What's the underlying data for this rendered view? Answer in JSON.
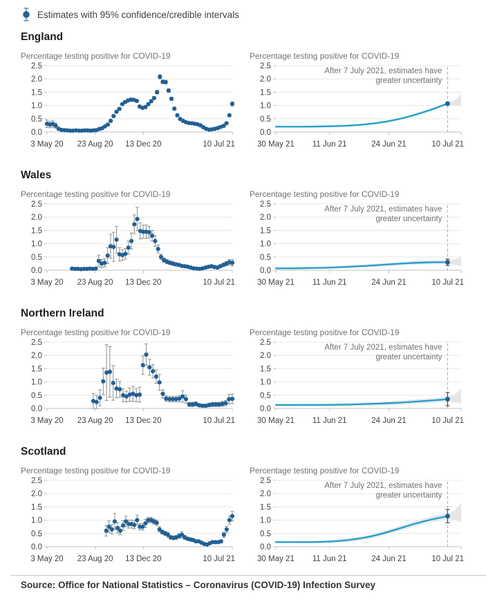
{
  "legend": {
    "label": "Estimates with 95% confidence/credible intervals"
  },
  "chart_title": "Percentage testing positive for COVID-19",
  "annotation": {
    "line1": "After 7 July 2021, estimates have",
    "line2": "greater uncertainty"
  },
  "source": "Source: Office for National Statistics – Coronavirus (COVID-19) Infection Survey",
  "colors": {
    "dot": "#206095",
    "line": "#27A0CC",
    "band": "#d9d9d9",
    "fan": "#e3e3e3",
    "error_bar": "#8f8f8f",
    "final_error_bar": "#4d4d4d",
    "grid": "#e8e8e8",
    "axis": "#bfbfbf",
    "dashed": "#a6a6a6",
    "heading": "#1f1f1f",
    "title": "#707071",
    "tick": "#414042",
    "annotation": "#707071"
  },
  "axes": {
    "ylim": [
      0,
      2.5
    ],
    "y_ticks": [
      "0.0",
      "0.5",
      "1.0",
      "1.5",
      "2.0",
      "2.5"
    ],
    "history_x_ticks": [
      {
        "label": "3 May 20",
        "pos": 0
      },
      {
        "label": "23 Aug 20",
        "pos": 0.26
      },
      {
        "label": "13 Dec 20",
        "pos": 0.52
      },
      {
        "label": "10 Jul 21",
        "pos": 1
      }
    ],
    "projection_x_ticks": [
      {
        "label": "30 May 21",
        "pos": 0
      },
      {
        "label": "11 Jun 21",
        "pos": 0.29
      },
      {
        "label": "24 Jun 21",
        "pos": 0.61
      },
      {
        "label": "10 Jul 21",
        "pos": 1
      }
    ],
    "dashed_line_pos": 0.927
  },
  "chart_data": [
    {
      "region": "England",
      "history": {
        "type": "scatter",
        "x_start": 0.0,
        "values": [
          0.31,
          0.28,
          0.3,
          0.24,
          0.12,
          0.08,
          0.07,
          0.06,
          0.05,
          0.05,
          0.06,
          0.05,
          0.05,
          0.06,
          0.06,
          0.05,
          0.06,
          0.07,
          0.11,
          0.14,
          0.21,
          0.28,
          0.42,
          0.6,
          0.76,
          0.87,
          1.05,
          1.13,
          1.19,
          1.22,
          1.21,
          1.17,
          0.96,
          0.91,
          0.94,
          1.05,
          1.16,
          1.28,
          1.5,
          2.08,
          1.89,
          1.88,
          1.56,
          1.25,
          0.88,
          0.63,
          0.49,
          0.42,
          0.37,
          0.34,
          0.33,
          0.31,
          0.29,
          0.25,
          0.18,
          0.12,
          0.09,
          0.1,
          0.12,
          0.15,
          0.19,
          0.23,
          0.33,
          0.63,
          1.06
        ],
        "errors": [
          0.14,
          0.12,
          0.12,
          0.1,
          0.05,
          0.03,
          0.02,
          0.02,
          0.02,
          0.02,
          0.02,
          0.02,
          0.02,
          0.02,
          0.02,
          0.02,
          0.02,
          0.02,
          0.03,
          0.03,
          0.03,
          0.03,
          0.04,
          0.05,
          0.05,
          0.05,
          0.05,
          0.05,
          0.05,
          0.05,
          0.05,
          0.05,
          0.05,
          0.05,
          0.05,
          0.05,
          0.05,
          0.06,
          0.07,
          0.08,
          0.07,
          0.07,
          0.07,
          0.06,
          0.06,
          0.05,
          0.04,
          0.04,
          0.04,
          0.03,
          0.03,
          0.03,
          0.03,
          0.03,
          0.03,
          0.02,
          0.02,
          0.02,
          0.02,
          0.02,
          0.03,
          0.03,
          0.04,
          0.05,
          0.08
        ]
      },
      "projection": {
        "type": "line",
        "y": [
          0.2,
          0.2,
          0.2,
          0.21,
          0.22,
          0.25,
          0.3,
          0.38,
          0.5,
          0.66,
          0.85,
          1.07
        ],
        "band_start": 0.02,
        "band_end": 0.05,
        "final_point": {
          "y": 1.07,
          "error": 0
        },
        "fan": {
          "hi": 1.45,
          "lo": 0.97
        }
      }
    },
    {
      "region": "Wales",
      "history": {
        "type": "scatter",
        "x_start": 0.135,
        "values": [
          0.06,
          0.05,
          0.05,
          0.04,
          0.05,
          0.05,
          0.06,
          0.05,
          0.06,
          0.35,
          0.25,
          0.28,
          0.55,
          0.9,
          0.88,
          1.15,
          0.6,
          0.57,
          0.62,
          0.85,
          1.1,
          1.73,
          1.93,
          1.48,
          1.45,
          1.45,
          1.43,
          1.3,
          1.1,
          0.8,
          0.5,
          0.38,
          0.32,
          0.28,
          0.25,
          0.22,
          0.2,
          0.16,
          0.15,
          0.13,
          0.1,
          0.07,
          0.06,
          0.05,
          0.07,
          0.1,
          0.13,
          0.15,
          0.12,
          0.1,
          0.15,
          0.2,
          0.25,
          0.3,
          0.28
        ],
        "errors": [
          0.03,
          0.03,
          0.03,
          0.03,
          0.03,
          0.03,
          0.03,
          0.03,
          0.03,
          0.22,
          0.15,
          0.15,
          0.3,
          0.45,
          0.55,
          0.5,
          0.25,
          0.2,
          0.2,
          0.25,
          0.3,
          0.35,
          0.44,
          0.3,
          0.25,
          0.25,
          0.22,
          0.2,
          0.2,
          0.15,
          0.1,
          0.08,
          0.08,
          0.07,
          0.07,
          0.06,
          0.06,
          0.05,
          0.05,
          0.05,
          0.04,
          0.04,
          0.04,
          0.04,
          0.04,
          0.05,
          0.05,
          0.05,
          0.05,
          0.05,
          0.06,
          0.07,
          0.08,
          0.1,
          0.12
        ]
      },
      "projection": {
        "type": "line",
        "y": [
          0.07,
          0.07,
          0.08,
          0.09,
          0.11,
          0.14,
          0.17,
          0.21,
          0.25,
          0.28,
          0.3,
          0.3
        ],
        "band_start": 0.03,
        "band_end": 0.08,
        "final_point": {
          "y": 0.3,
          "error": 0.12
        },
        "fan": {
          "hi": 0.5,
          "lo": 0.15
        }
      }
    },
    {
      "region": "Northern Ireland",
      "history": {
        "type": "scatter",
        "x_start": 0.25,
        "values": [
          0.28,
          0.24,
          0.4,
          1.02,
          1.35,
          1.38,
          0.96,
          0.75,
          0.72,
          0.5,
          0.45,
          0.52,
          0.55,
          0.5,
          0.52,
          1.63,
          2.03,
          1.55,
          1.4,
          1.2,
          0.98,
          0.55,
          0.37,
          0.35,
          0.35,
          0.35,
          0.37,
          0.45,
          0.35,
          0.15,
          0.15,
          0.17,
          0.12,
          0.1,
          0.1,
          0.13,
          0.15,
          0.15,
          0.15,
          0.17,
          0.2,
          0.35,
          0.36
        ],
        "errors": [
          0.28,
          0.25,
          0.3,
          0.5,
          1.05,
          0.95,
          0.65,
          0.35,
          0.3,
          0.25,
          0.2,
          0.25,
          0.28,
          0.25,
          0.28,
          0.35,
          0.4,
          0.3,
          0.25,
          0.25,
          0.3,
          0.15,
          0.1,
          0.1,
          0.1,
          0.1,
          0.12,
          0.22,
          0.15,
          0.08,
          0.08,
          0.08,
          0.06,
          0.06,
          0.06,
          0.07,
          0.08,
          0.08,
          0.08,
          0.09,
          0.1,
          0.18,
          0.18
        ]
      },
      "projection": {
        "type": "line",
        "y": [
          0.13,
          0.13,
          0.13,
          0.13,
          0.14,
          0.15,
          0.17,
          0.19,
          0.22,
          0.26,
          0.3,
          0.35
        ],
        "band_start": 0.03,
        "band_end": 0.1,
        "final_point": {
          "y": 0.35,
          "error": 0.25
        },
        "fan": {
          "hi": 0.75,
          "lo": 0.17
        }
      }
    },
    {
      "region": "Scotland",
      "history": {
        "type": "scatter",
        "x_start": 0.32,
        "values": [
          0.6,
          0.75,
          0.65,
          0.95,
          0.7,
          0.6,
          0.8,
          0.95,
          0.85,
          0.85,
          0.82,
          1.0,
          0.75,
          0.75,
          0.88,
          1.0,
          1.0,
          0.95,
          0.9,
          0.65,
          0.55,
          0.5,
          0.45,
          0.35,
          0.33,
          0.35,
          0.4,
          0.45,
          0.35,
          0.3,
          0.27,
          0.25,
          0.2,
          0.2,
          0.15,
          0.1,
          0.08,
          0.13,
          0.17,
          0.17,
          0.17,
          0.2,
          0.45,
          0.65,
          1.0,
          1.15
        ],
        "errors": [
          0.2,
          0.22,
          0.18,
          0.3,
          0.2,
          0.15,
          0.18,
          0.2,
          0.15,
          0.15,
          0.15,
          0.18,
          0.12,
          0.12,
          0.15,
          0.1,
          0.1,
          0.1,
          0.1,
          0.1,
          0.08,
          0.08,
          0.1,
          0.07,
          0.07,
          0.07,
          0.08,
          0.12,
          0.08,
          0.06,
          0.06,
          0.06,
          0.05,
          0.05,
          0.05,
          0.04,
          0.04,
          0.05,
          0.05,
          0.05,
          0.05,
          0.06,
          0.1,
          0.12,
          0.15,
          0.18
        ]
      },
      "projection": {
        "type": "line",
        "y": [
          0.17,
          0.17,
          0.17,
          0.18,
          0.21,
          0.27,
          0.37,
          0.52,
          0.7,
          0.88,
          1.03,
          1.15
        ],
        "band_start": 0.03,
        "band_end": 0.12,
        "final_point": {
          "y": 1.15,
          "error": 0.25
        },
        "fan": {
          "hi": 1.65,
          "lo": 0.92
        }
      }
    }
  ]
}
